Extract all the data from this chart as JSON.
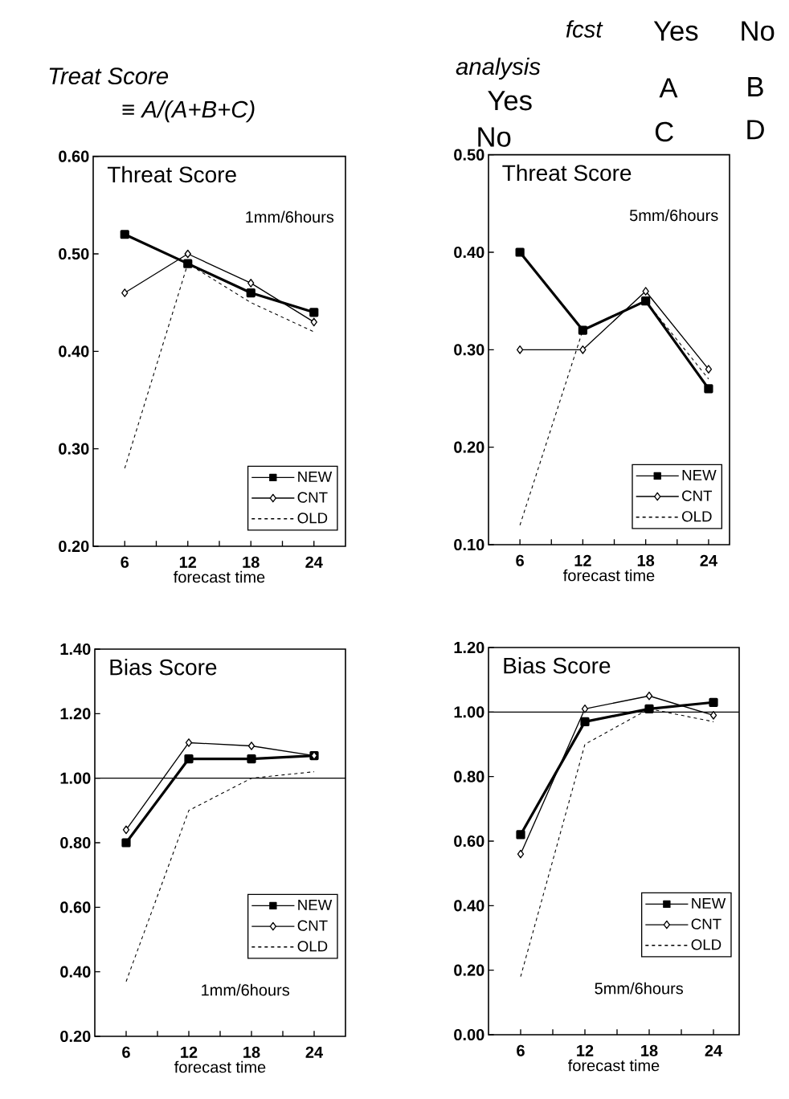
{
  "chart_data": [
    {
      "type": "line",
      "title": "Threat Score",
      "subtitle": "1mm/6hours",
      "xlabel": "forecast time",
      "x": [
        6,
        12,
        18,
        24
      ],
      "xlim": [
        3,
        27
      ],
      "xticks": [
        6,
        {
          "value": 9,
          "label": null
        },
        12,
        {
          "value": 15,
          "label": null
        },
        18,
        {
          "value": 21,
          "label": null
        },
        24
      ],
      "ylim": [
        0.2,
        0.6
      ],
      "yticks": [
        {
          "value": 0.2,
          "label": "0.20"
        },
        {
          "value": 0.3,
          "label": "0.30"
        },
        {
          "value": 0.4,
          "label": "0.40"
        },
        {
          "value": 0.5,
          "label": "0.50"
        },
        {
          "value": 0.6,
          "label": "0.60"
        }
      ],
      "legend": "bottom right",
      "grid": false,
      "series": [
        {
          "name": "NEW",
          "color": "#000000",
          "marker": "square",
          "line_style": "solid",
          "values": [
            0.52,
            0.49,
            0.46,
            0.44
          ]
        },
        {
          "name": "CNT",
          "color": "#000000",
          "marker": "diamond",
          "line_style": "solid",
          "values": [
            0.46,
            0.5,
            0.47,
            0.43
          ]
        },
        {
          "name": "OLD",
          "color": "#000000",
          "marker": "none",
          "line_style": "dashed",
          "values": [
            0.28,
            0.49,
            0.45,
            0.42
          ]
        }
      ],
      "annotations": [
        "Treat Score",
        "≡ A/(A+B+C)"
      ]
    },
    {
      "type": "line",
      "title": "Threat Score",
      "subtitle": "5mm/6hours",
      "xlabel": "forecast time",
      "x": [
        6,
        12,
        18,
        24
      ],
      "xlim": [
        3,
        26
      ],
      "xticks": [
        6,
        {
          "value": 9,
          "label": null
        },
        12,
        {
          "value": 15,
          "label": null
        },
        18,
        {
          "value": 21,
          "label": null
        },
        24
      ],
      "ylim": [
        0.1,
        0.5
      ],
      "yticks": [
        {
          "value": 0.1,
          "label": "0.10"
        },
        {
          "value": 0.2,
          "label": "0.20"
        },
        {
          "value": 0.3,
          "label": "0.30"
        },
        {
          "value": 0.4,
          "label": "0.40"
        },
        {
          "value": 0.5,
          "label": "0.50"
        }
      ],
      "legend": "bottom right",
      "grid": false,
      "series": [
        {
          "name": "NEW",
          "color": "#000000",
          "marker": "square",
          "line_style": "solid",
          "values": [
            0.4,
            0.32,
            0.35,
            0.26
          ]
        },
        {
          "name": "CNT",
          "color": "#000000",
          "marker": "diamond",
          "line_style": "solid",
          "values": [
            0.3,
            0.3,
            0.36,
            0.28
          ]
        },
        {
          "name": "OLD",
          "color": "#000000",
          "marker": "none",
          "line_style": "dashed",
          "values": [
            0.12,
            0.32,
            0.35,
            0.27
          ]
        }
      ],
      "annotations": [
        "fcst",
        "Yes",
        "No",
        "analysis",
        "Yes",
        "No",
        "A",
        "B",
        "C",
        "D"
      ]
    },
    {
      "type": "line",
      "title": "Bias Score",
      "subtitle": "1mm/6hours",
      "xlabel": "forecast time",
      "x": [
        6,
        12,
        18,
        24
      ],
      "xlim": [
        3,
        27
      ],
      "xticks": [
        6,
        {
          "value": 9,
          "label": null
        },
        12,
        {
          "value": 15,
          "label": null
        },
        18,
        {
          "value": 21,
          "label": null
        },
        24
      ],
      "ylim": [
        0.2,
        1.4
      ],
      "yticks": [
        {
          "value": 0.2,
          "label": "0.20"
        },
        {
          "value": 0.4,
          "label": "0.40"
        },
        {
          "value": 0.6,
          "label": "0.60"
        },
        {
          "value": 0.8,
          "label": "0.80"
        },
        {
          "value": 1.0,
          "label": "1.00"
        },
        {
          "value": 1.2,
          "label": "1.20"
        },
        {
          "value": 1.4,
          "label": "1.40"
        }
      ],
      "legend": "bottom right",
      "grid": false,
      "ref_lines": [
        {
          "axis": "y",
          "value": 1.0
        }
      ],
      "series": [
        {
          "name": "NEW",
          "color": "#000000",
          "marker": "square",
          "line_style": "solid",
          "values": [
            0.8,
            1.06,
            1.06,
            1.07
          ]
        },
        {
          "name": "CNT",
          "color": "#000000",
          "marker": "diamond",
          "line_style": "solid",
          "values": [
            0.84,
            1.11,
            1.1,
            1.07
          ]
        },
        {
          "name": "OLD",
          "color": "#000000",
          "marker": "none",
          "line_style": "dashed",
          "values": [
            0.37,
            0.9,
            1.0,
            1.02
          ]
        }
      ]
    },
    {
      "type": "line",
      "title": "Bias Score",
      "subtitle": "5mm/6hours",
      "xlabel": "forecast time",
      "x": [
        6,
        12,
        18,
        24
      ],
      "xlim": [
        3,
        26.4
      ],
      "xticks": [
        6,
        {
          "value": 9,
          "label": null
        },
        12,
        {
          "value": 15,
          "label": null
        },
        18,
        {
          "value": 21,
          "label": null
        },
        24
      ],
      "ylim": [
        0.0,
        1.2
      ],
      "yticks": [
        {
          "value": 0.0,
          "label": "0.00"
        },
        {
          "value": 0.2,
          "label": "0.20"
        },
        {
          "value": 0.4,
          "label": "0.40"
        },
        {
          "value": 0.6,
          "label": "0.60"
        },
        {
          "value": 0.8,
          "label": "0.80"
        },
        {
          "value": 1.0,
          "label": "1.00"
        },
        {
          "value": 1.2,
          "label": "1.20"
        }
      ],
      "legend": "bottom right",
      "grid": false,
      "ref_lines": [
        {
          "axis": "y",
          "value": 1.0
        }
      ],
      "series": [
        {
          "name": "NEW",
          "color": "#000000",
          "marker": "square",
          "line_style": "solid",
          "values": [
            0.62,
            0.97,
            1.01,
            1.03
          ]
        },
        {
          "name": "CNT",
          "color": "#000000",
          "marker": "diamond",
          "line_style": "solid",
          "values": [
            0.56,
            1.01,
            1.05,
            0.99
          ]
        },
        {
          "name": "OLD",
          "color": "#000000",
          "marker": "none",
          "line_style": "dashed",
          "values": [
            0.18,
            0.9,
            1.01,
            0.97
          ]
        }
      ]
    }
  ]
}
